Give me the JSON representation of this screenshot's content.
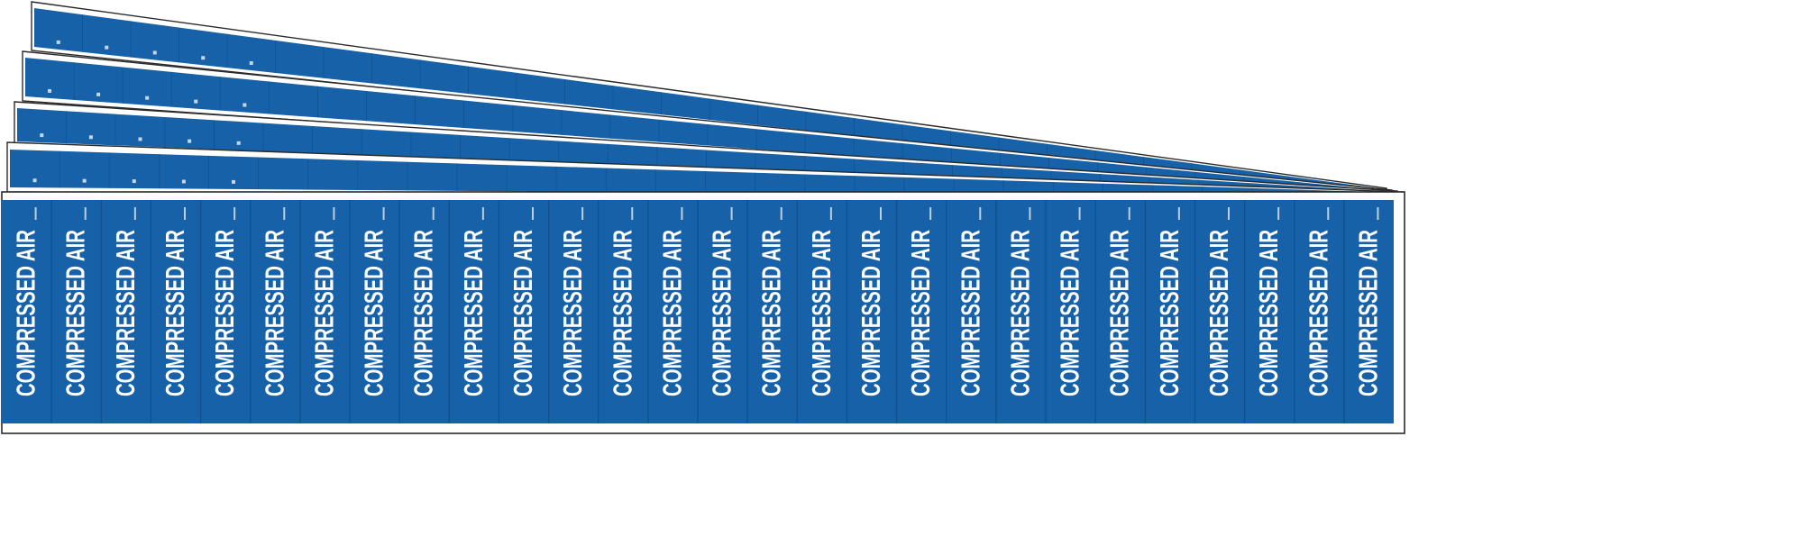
{
  "product": {
    "legend": "COMPRESSED AIR",
    "labels_per_card": 28,
    "card_count": 5
  },
  "colors": {
    "label_background": "#1761a8",
    "label_text": "#ffffff",
    "card_background": "#ffffff",
    "card_edge": "#2a2a2a",
    "label_divider": "#0f4f8c"
  }
}
